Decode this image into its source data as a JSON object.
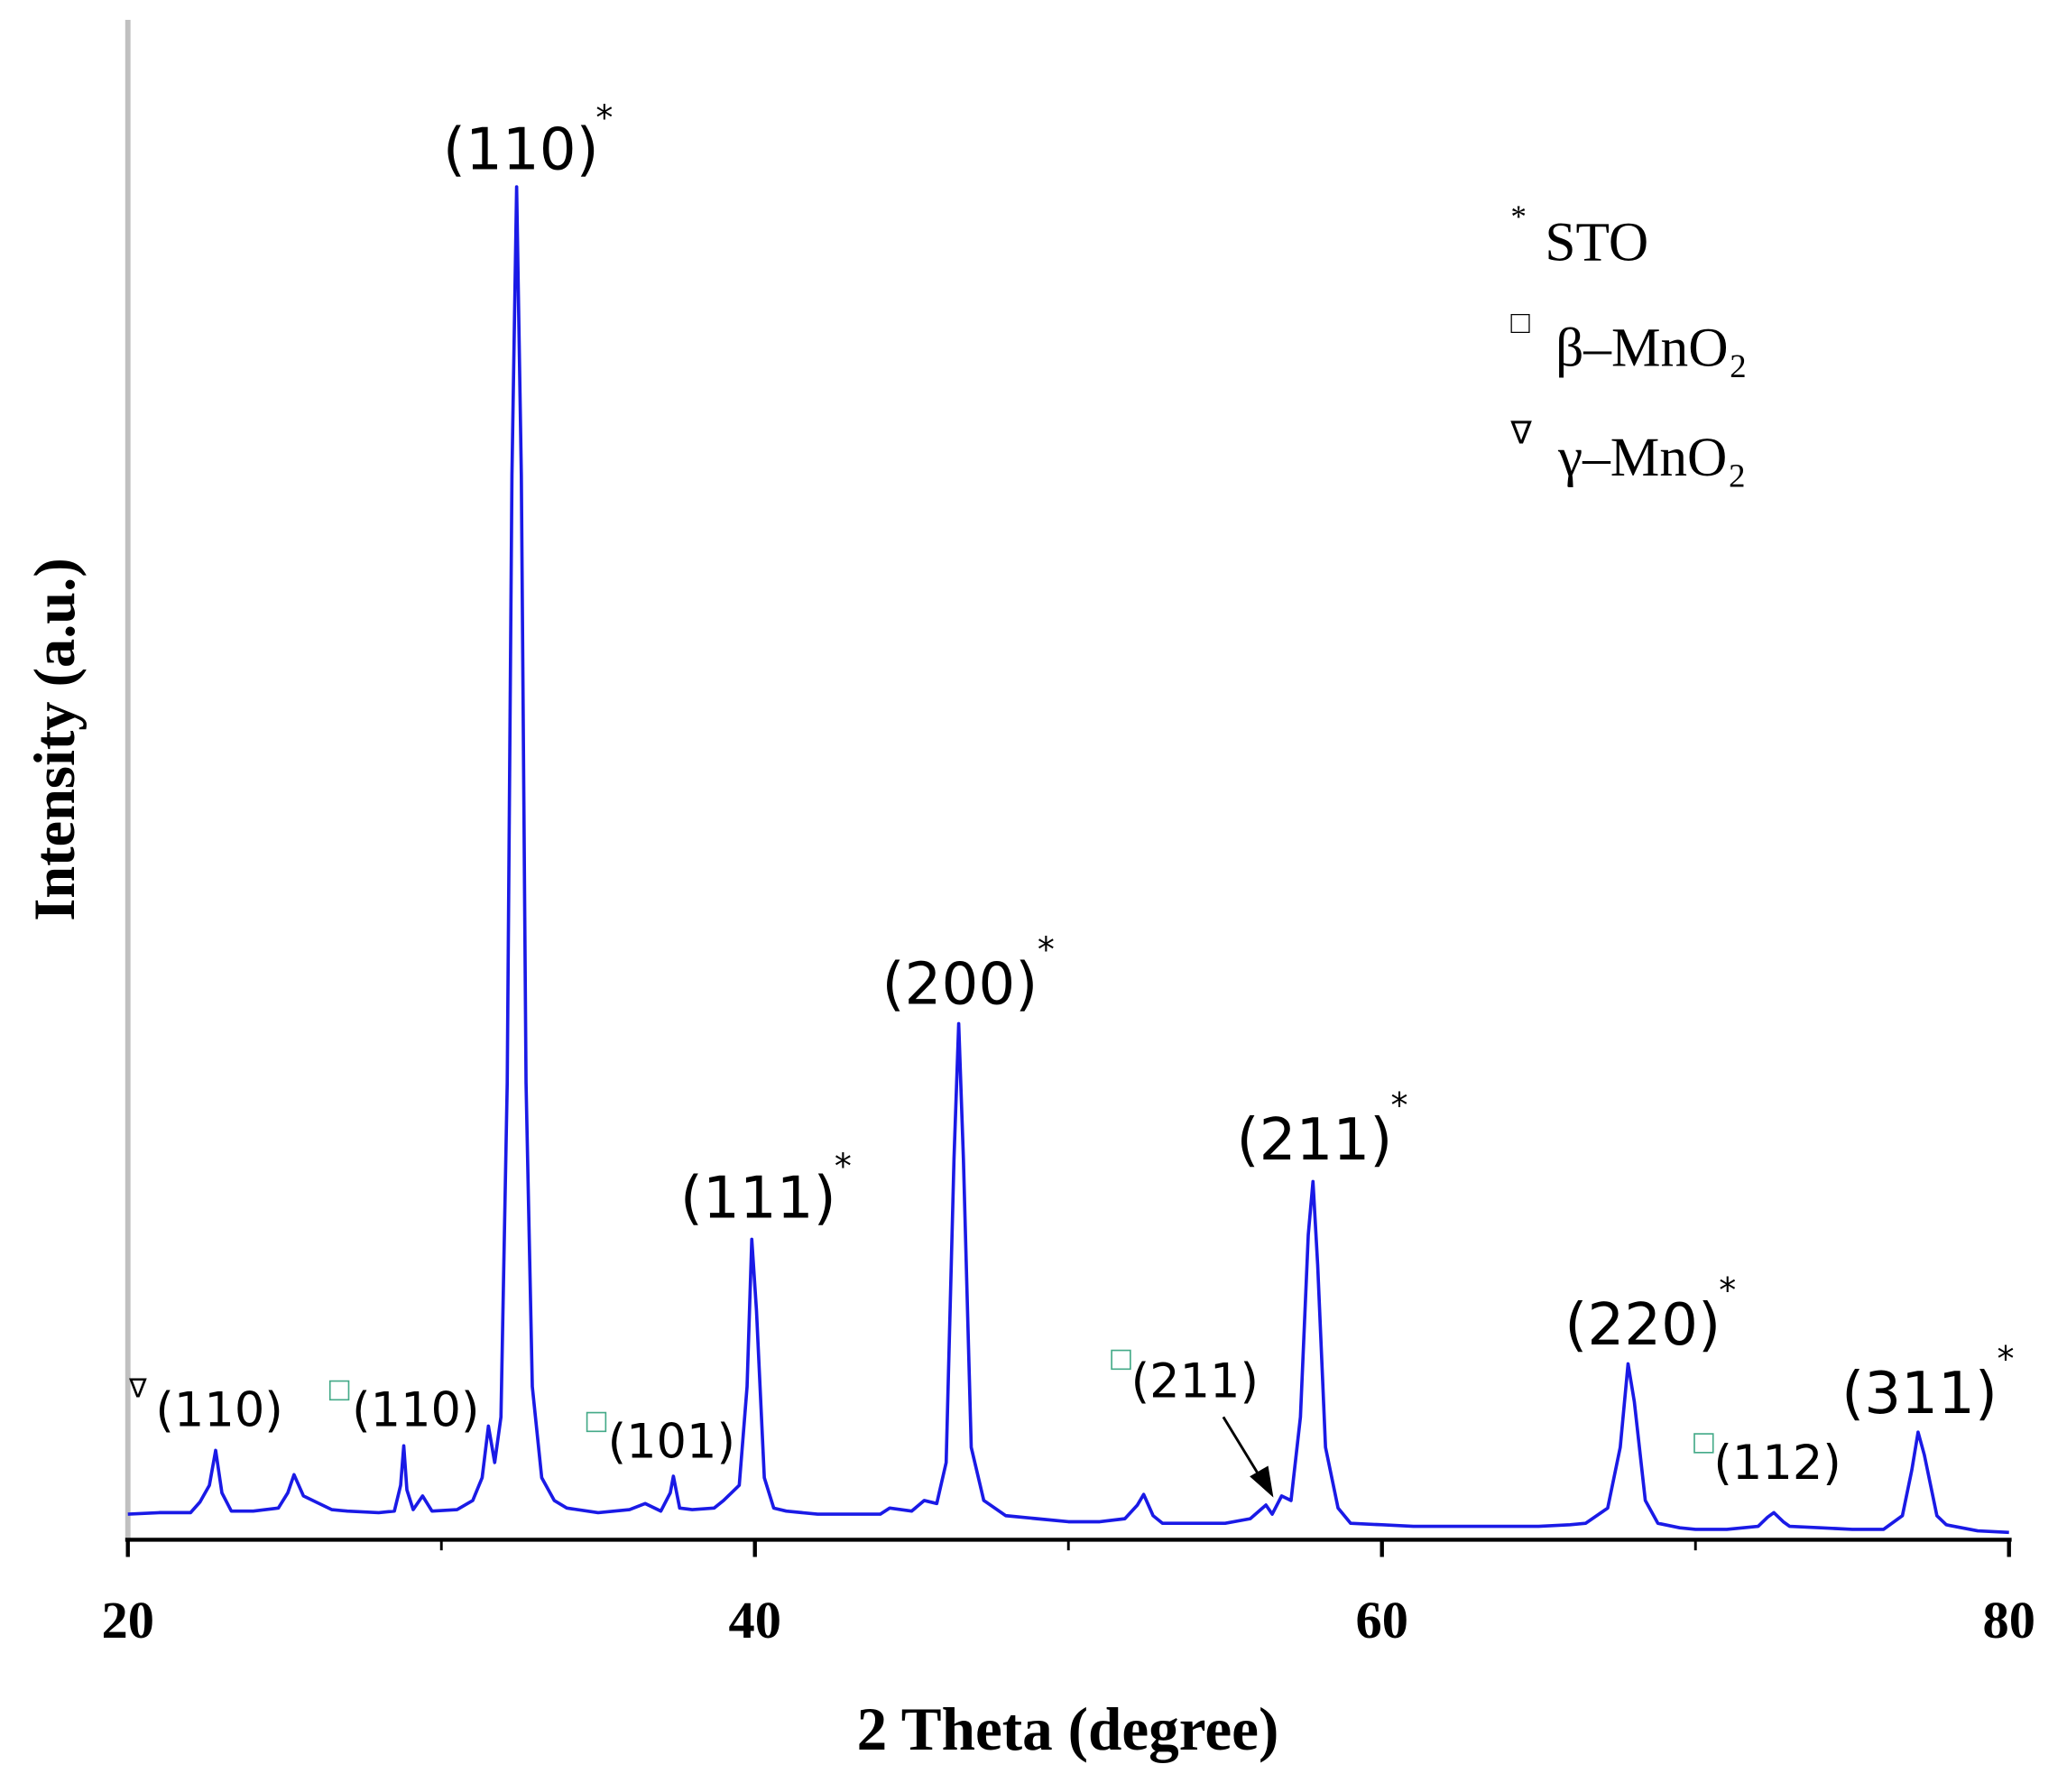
{
  "chart_data": {
    "type": "line",
    "xlabel": "2 Theta (degree)",
    "ylabel": "Intensity (a.u.)",
    "xlim": [
      20,
      80
    ],
    "xticks": [
      20,
      40,
      60,
      80
    ],
    "xminorticks": [
      30,
      50,
      70
    ],
    "ylim": [
      0,
      100
    ],
    "x": [
      20,
      21,
      22,
      22.3,
      22.6,
      22.8,
      23.0,
      23.3,
      24,
      24.8,
      25.1,
      25.3,
      25.6,
      26,
      26.5,
      27,
      28,
      28.5,
      28.7,
      28.8,
      28.9,
      29.1,
      29.4,
      29.7,
      30.5,
      31.0,
      31.3,
      31.5,
      31.7,
      31.9,
      32.1,
      32.25,
      32.4,
      32.55,
      32.7,
      32.9,
      33.2,
      33.6,
      34,
      35,
      36,
      36.5,
      37,
      37.3,
      37.4,
      37.6,
      38,
      38.7,
      39,
      39.5,
      39.75,
      39.9,
      40.05,
      40.3,
      40.6,
      41,
      42,
      43,
      44,
      44.3,
      45,
      45.4,
      45.8,
      46.1,
      46.35,
      46.5,
      46.65,
      46.9,
      47.3,
      48,
      49,
      50,
      51,
      51.8,
      52.2,
      52.4,
      52.7,
      53,
      54,
      55,
      55.8,
      56.3,
      56.5,
      56.8,
      57.1,
      57.4,
      57.65,
      57.8,
      57.95,
      58.2,
      58.6,
      59,
      60,
      61,
      62,
      63,
      64,
      65,
      66,
      66.5,
      67.2,
      67.6,
      67.85,
      68.05,
      68.4,
      68.8,
      69.5,
      70,
      71,
      72,
      72.3,
      72.5,
      72.8,
      73,
      74,
      75,
      76,
      76.6,
      76.9,
      77.1,
      77.3,
      77.7,
      78,
      79,
      80
    ],
    "series": [
      {
        "color": "#1a1ae6",
        "values": [
          1.6,
          1.7,
          1.7,
          2.4,
          3.5,
          5.8,
          3.0,
          1.8,
          1.8,
          2.0,
          3.0,
          4.2,
          2.8,
          2.4,
          1.9,
          1.8,
          1.7,
          1.8,
          3.5,
          6.1,
          3.2,
          1.9,
          2.8,
          1.8,
          1.9,
          2.5,
          4.0,
          7.4,
          5.0,
          8.0,
          30,
          70,
          89.0,
          70,
          30,
          10,
          4.0,
          2.5,
          2.0,
          1.7,
          1.9,
          2.3,
          1.8,
          3.0,
          4.1,
          2.0,
          1.9,
          2.0,
          2.5,
          3.5,
          10,
          19.7,
          15,
          4,
          2.0,
          1.8,
          1.6,
          1.6,
          1.6,
          2.0,
          1.8,
          2.5,
          2.3,
          5,
          25,
          33.9,
          25,
          6,
          2.5,
          1.5,
          1.3,
          1.1,
          1.1,
          1.3,
          2.2,
          2.9,
          1.5,
          1.0,
          1.0,
          1.0,
          1.3,
          2.2,
          1.6,
          2.8,
          2.5,
          8,
          20,
          23.5,
          18,
          6,
          2.0,
          1.0,
          0.9,
          0.8,
          0.8,
          0.8,
          0.8,
          0.8,
          0.9,
          1.0,
          2.0,
          6,
          11.5,
          9,
          2.5,
          1.0,
          0.7,
          0.6,
          0.6,
          0.8,
          1.4,
          1.7,
          1.1,
          0.8,
          0.7,
          0.6,
          0.6,
          1.5,
          4.5,
          7.0,
          5.5,
          1.5,
          0.9,
          0.5,
          0.4
        ]
      }
    ],
    "annotations": [
      {
        "symbol": "∇",
        "label": "(110)"
      },
      {
        "symbol": "□",
        "label": "(110)"
      },
      {
        "label": "(110)",
        "mark": "*"
      },
      {
        "symbol": "□",
        "label": "(101)"
      },
      {
        "label": "(111)",
        "mark": "*"
      },
      {
        "label": "(200)",
        "mark": "*"
      },
      {
        "symbol": "□",
        "label": "(211)"
      },
      {
        "label": "(211)",
        "mark": "*"
      },
      {
        "label": "(220)",
        "mark": "*"
      },
      {
        "symbol": "□",
        "label": "(112)"
      },
      {
        "label": "(311)",
        "mark": "*"
      }
    ],
    "legend": [
      {
        "symbol": "*",
        "label": "STO"
      },
      {
        "symbol": "□",
        "label": "β–MnO₂"
      },
      {
        "symbol": "∇",
        "label": "γ–MnO₂"
      }
    ]
  }
}
